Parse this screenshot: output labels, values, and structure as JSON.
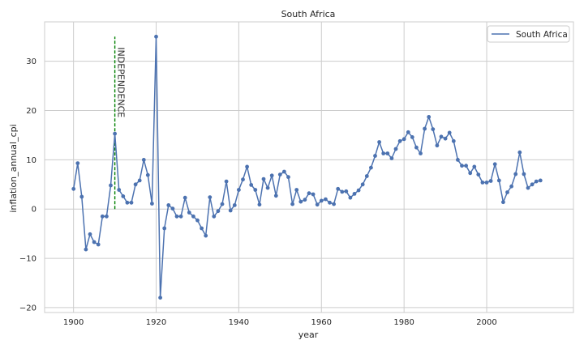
{
  "chart_data": {
    "type": "line",
    "title": "South Africa",
    "xlabel": "year",
    "ylabel": "inflation_annual_cpi",
    "xlim": [
      1893,
      2021
    ],
    "ylim": [
      -21,
      38
    ],
    "xticks": [
      1900,
      1920,
      1940,
      1960,
      1980,
      2000
    ],
    "yticks": [
      -20,
      -10,
      0,
      10,
      20,
      30
    ],
    "grid": true,
    "legend_position": "top-right",
    "series": [
      {
        "name": "South Africa",
        "color": "#4c72b0",
        "marker": "circle",
        "x": [
          1900,
          1901,
          1902,
          1903,
          1904,
          1905,
          1906,
          1907,
          1908,
          1909,
          1910,
          1911,
          1912,
          1913,
          1914,
          1915,
          1916,
          1917,
          1918,
          1919,
          1920,
          1921,
          1922,
          1923,
          1924,
          1925,
          1926,
          1927,
          1928,
          1929,
          1930,
          1931,
          1932,
          1933,
          1934,
          1935,
          1936,
          1937,
          1938,
          1939,
          1940,
          1941,
          1942,
          1943,
          1944,
          1945,
          1946,
          1947,
          1948,
          1949,
          1950,
          1951,
          1952,
          1953,
          1954,
          1955,
          1956,
          1957,
          1958,
          1959,
          1960,
          1961,
          1962,
          1963,
          1964,
          1965,
          1966,
          1967,
          1968,
          1969,
          1970,
          1971,
          1972,
          1973,
          1974,
          1975,
          1976,
          1977,
          1978,
          1979,
          1980,
          1981,
          1982,
          1983,
          1984,
          1985,
          1986,
          1987,
          1988,
          1989,
          1990,
          1991,
          1992,
          1993,
          1994,
          1995,
          1996,
          1997,
          1998,
          1999,
          2000,
          2001,
          2002,
          2003,
          2004,
          2005,
          2006,
          2007,
          2008,
          2009,
          2010,
          2011,
          2012,
          2013
        ],
        "y": [
          4.1,
          9.3,
          2.5,
          -8.2,
          -5.1,
          -6.7,
          -7.2,
          -1.5,
          -1.5,
          4.8,
          15.3,
          3.9,
          2.6,
          1.3,
          1.3,
          5.0,
          5.8,
          10.0,
          6.9,
          1.1,
          35.0,
          -18.0,
          -3.9,
          0.8,
          0.1,
          -1.5,
          -1.5,
          2.3,
          -0.7,
          -1.5,
          -2.3,
          -3.9,
          -5.4,
          2.4,
          -1.5,
          -0.4,
          1.0,
          5.6,
          -0.3,
          0.8,
          3.9,
          6.0,
          8.6,
          4.9,
          3.9,
          0.9,
          6.1,
          4.3,
          6.8,
          2.7,
          7.0,
          7.6,
          6.5,
          1.0,
          3.9,
          1.5,
          1.9,
          3.2,
          3.0,
          0.9,
          1.7,
          2.0,
          1.3,
          1.0,
          4.1,
          3.5,
          3.6,
          2.3,
          3.1,
          3.8,
          5.0,
          6.7,
          8.4,
          10.8,
          13.6,
          11.3,
          11.3,
          10.3,
          12.2,
          13.8,
          14.2,
          15.6,
          14.6,
          12.5,
          11.3,
          16.3,
          18.7,
          16.2,
          12.9,
          14.7,
          14.3,
          15.5,
          13.8,
          10.0,
          8.8,
          8.8,
          7.3,
          8.6,
          7.0,
          5.4,
          5.4,
          5.7,
          9.1,
          5.8,
          1.4,
          3.4,
          4.6,
          7.1,
          11.5,
          7.1,
          4.3,
          5.0,
          5.6,
          5.8
        ]
      }
    ],
    "annotations": [
      {
        "type": "vline",
        "x": 1910,
        "y_range": [
          0,
          35
        ],
        "color": "#008000",
        "style": "dashed",
        "label": "INDEPENDENCE"
      }
    ]
  }
}
